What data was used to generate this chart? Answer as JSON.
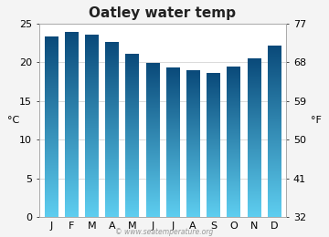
{
  "title": "Oatley water temp",
  "months": [
    "J",
    "F",
    "M",
    "A",
    "M",
    "J",
    "J",
    "A",
    "S",
    "O",
    "N",
    "D"
  ],
  "values": [
    23.3,
    23.8,
    23.5,
    22.5,
    21.0,
    19.9,
    19.3,
    18.9,
    18.6,
    19.4,
    20.4,
    22.1
  ],
  "ylabel_left": "°C",
  "ylabel_right": "°F",
  "ylim_left": [
    0,
    25
  ],
  "yticks_left": [
    0,
    5,
    10,
    15,
    20,
    25
  ],
  "yticks_right": [
    32,
    41,
    50,
    59,
    68,
    77
  ],
  "bar_color_top": "#5ecef0",
  "bar_color_bottom": "#0a4a7a",
  "bg_color": "#f4f4f4",
  "plot_bg_upper": "#e8e8e8",
  "plot_bg_lower": "#ffffff",
  "watermark": "© www.seatemperature.org",
  "title_fontsize": 11,
  "axis_fontsize": 8,
  "tick_fontsize": 8,
  "bar_width": 0.65
}
